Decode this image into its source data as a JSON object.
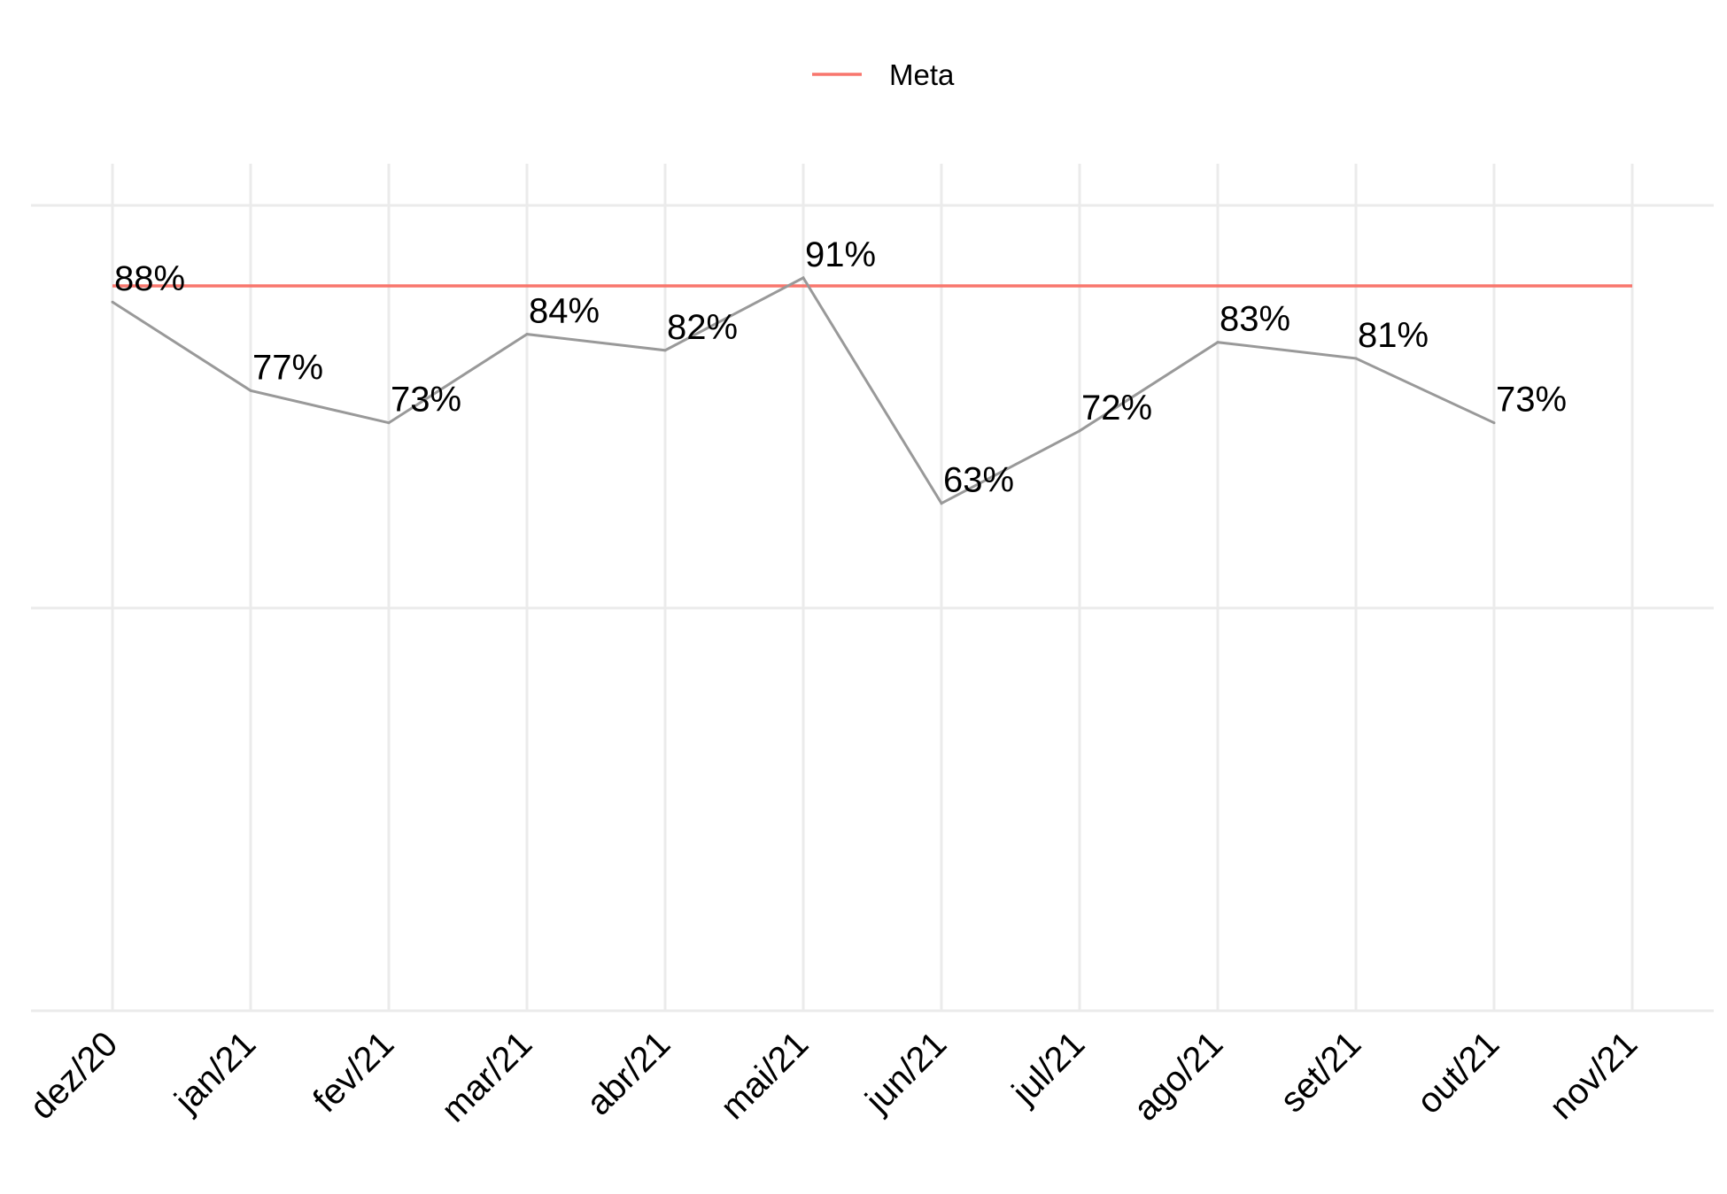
{
  "chart_data": {
    "type": "line",
    "categories": [
      "dez/20",
      "jan/21",
      "fev/21",
      "mar/21",
      "abr/21",
      "mai/21",
      "jun/21",
      "jul/21",
      "ago/21",
      "set/21",
      "out/21",
      "nov/21"
    ],
    "series": [
      {
        "values": [
          88,
          77,
          73,
          84,
          82,
          91,
          63,
          72,
          83,
          81,
          73,
          null
        ],
        "labels": [
          "88%",
          "77%",
          "73%",
          "84%",
          "82%",
          "91%",
          "63%",
          "72%",
          "83%",
          "81%",
          "73%",
          null
        ],
        "color": "#999999"
      }
    ],
    "reference_line": {
      "name": "Meta",
      "value": 90,
      "color": "#F8766D"
    },
    "legend": {
      "position": "top",
      "items": [
        "Meta"
      ]
    },
    "ylim": [
      0,
      100
    ],
    "grid": true,
    "y_ticks_shown": false,
    "title": "",
    "xlabel": "",
    "ylabel": ""
  }
}
